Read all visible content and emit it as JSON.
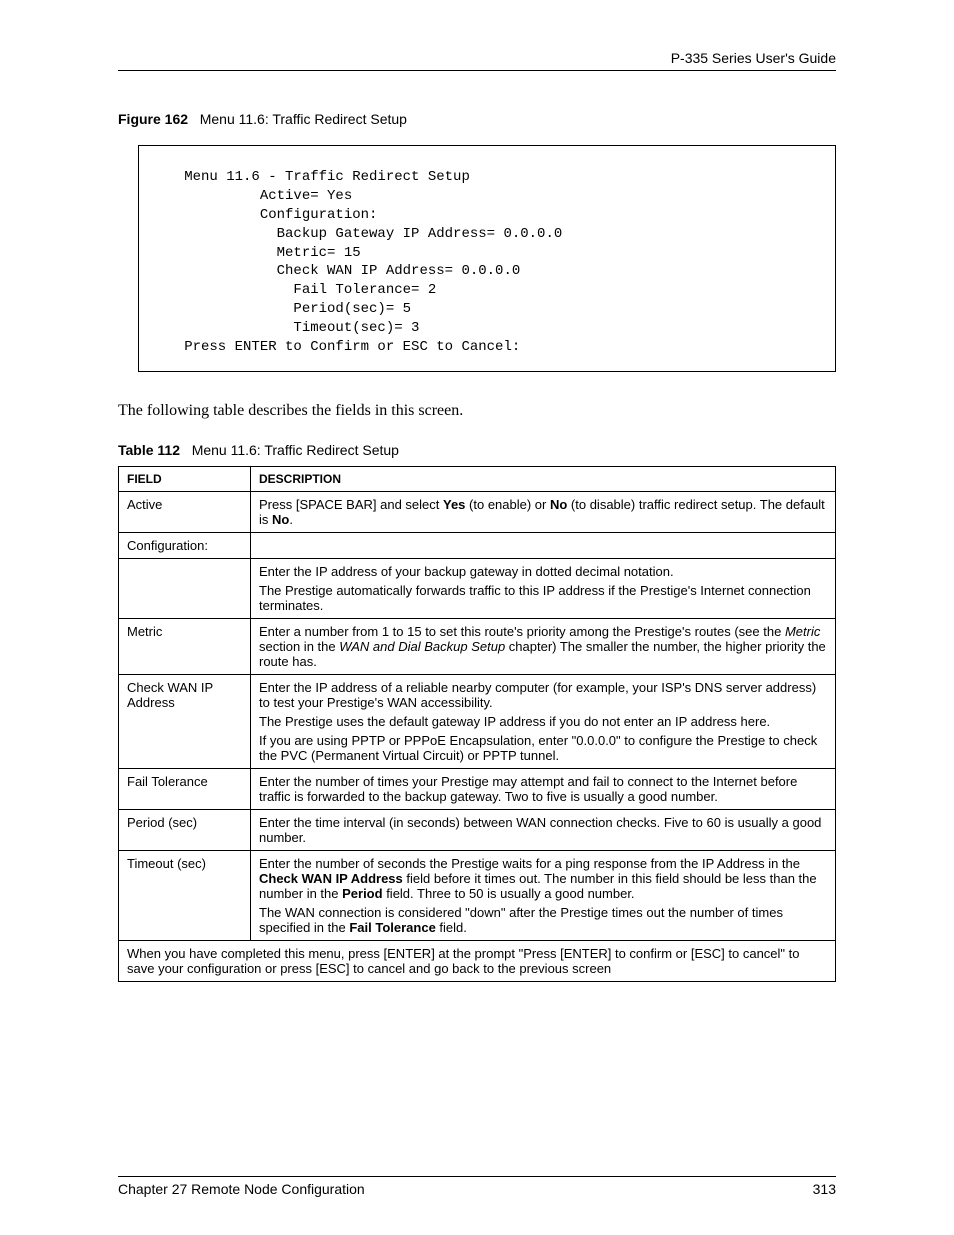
{
  "header": {
    "guide_title": "P-335 Series User's Guide"
  },
  "figure": {
    "label": "Figure 162",
    "caption": "Menu 11.6: Traffic Redirect Setup",
    "code": "   Menu 11.6 - Traffic Redirect Setup\n            Active= Yes\n            Configuration:\n              Backup Gateway IP Address= 0.0.0.0\n              Metric= 15\n              Check WAN IP Address= 0.0.0.0\n                Fail Tolerance= 2\n                Period(sec)= 5\n                Timeout(sec)= 3\n   Press ENTER to Confirm or ESC to Cancel:"
  },
  "intro_text": "The following table describes the fields in this screen.",
  "table": {
    "label": "Table 112",
    "caption": "Menu 11.6: Traffic Redirect Setup",
    "head_field": "FIELD",
    "head_desc": "DESCRIPTION",
    "rows": {
      "active": {
        "field": "Active",
        "desc_pre": "Press [SPACE BAR] and select ",
        "yes": "Yes",
        "mid1": " (to enable) or ",
        "no": "No",
        "mid2": " (to disable) traffic redirect setup. The default is ",
        "no2": "No",
        "end": "."
      },
      "configuration": {
        "field": "Configuration:",
        "desc": ""
      },
      "backup_gw": {
        "field": "",
        "p1": "Enter the IP address of your backup gateway in dotted decimal notation.",
        "p2": "The Prestige automatically forwards traffic to this IP address if the Prestige's Internet connection terminates."
      },
      "metric": {
        "field": "Metric",
        "pre": "Enter a number from 1 to 15 to set this route's priority among the Prestige's routes (see the ",
        "em1": "Metric",
        "mid": " section in the ",
        "em2": "WAN and Dial Backup Setup",
        "post": " chapter) The smaller the number, the higher priority the route has."
      },
      "check_wan": {
        "field": "Check WAN IP Address",
        "p1": "Enter the IP address of a reliable nearby computer (for example, your ISP's DNS server address) to test your Prestige's WAN accessibility.",
        "p2": "The Prestige uses the default gateway IP address if you do not enter an IP address here.",
        "p3": "If you are using PPTP or PPPoE Encapsulation, enter \"0.0.0.0\" to configure the Prestige to check the PVC (Permanent Virtual Circuit) or PPTP tunnel."
      },
      "fail_tol": {
        "field": "Fail Tolerance",
        "desc": "Enter the number of times your Prestige may attempt and fail to connect to the Internet before traffic is forwarded to the backup gateway. Two to five is usually a good number."
      },
      "period": {
        "field": "Period (sec)",
        "desc": "Enter the time interval (in seconds) between WAN connection checks. Five to 60 is usually a good number."
      },
      "timeout": {
        "field": "Timeout (sec)",
        "p1_pre": "Enter the number of seconds the Prestige waits for a ping response from the IP Address in the ",
        "p1_b1": "Check WAN IP Address",
        "p1_mid": " field before it times out. The number in this field should be less than the number in the ",
        "p1_b2": "Period",
        "p1_post": " field. Three to 50 is usually a good number.",
        "p2_pre": "The WAN connection is considered \"down\" after the Prestige times out the number of times specified in the ",
        "p2_b": "Fail Tolerance",
        "p2_post": " field."
      },
      "footer_row": "When you have completed this menu, press [ENTER] at the prompt \"Press [ENTER] to confirm or [ESC] to cancel\" to save your configuration or press [ESC] to cancel and go back to the previous screen"
    }
  },
  "footer": {
    "chapter": "Chapter 27 Remote Node Configuration",
    "page": "313"
  }
}
